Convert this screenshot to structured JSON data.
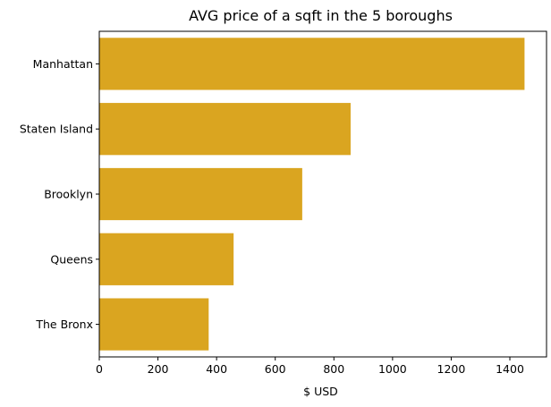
{
  "chart_data": {
    "type": "bar",
    "orientation": "horizontal",
    "title": "AVG price of a sqft in the 5 boroughs",
    "xlabel": "$ USD",
    "ylabel": "",
    "categories": [
      "Manhattan",
      "Staten Island",
      "Brooklyn",
      "Queens",
      "The Bronx"
    ],
    "values": [
      1450,
      857,
      692,
      458,
      373
    ],
    "xlim": [
      0,
      1525
    ],
    "xticks": [
      0,
      200,
      400,
      600,
      800,
      1000,
      1200,
      1400
    ],
    "bar_color": "#DAA520",
    "grid": false,
    "legend": "none"
  }
}
